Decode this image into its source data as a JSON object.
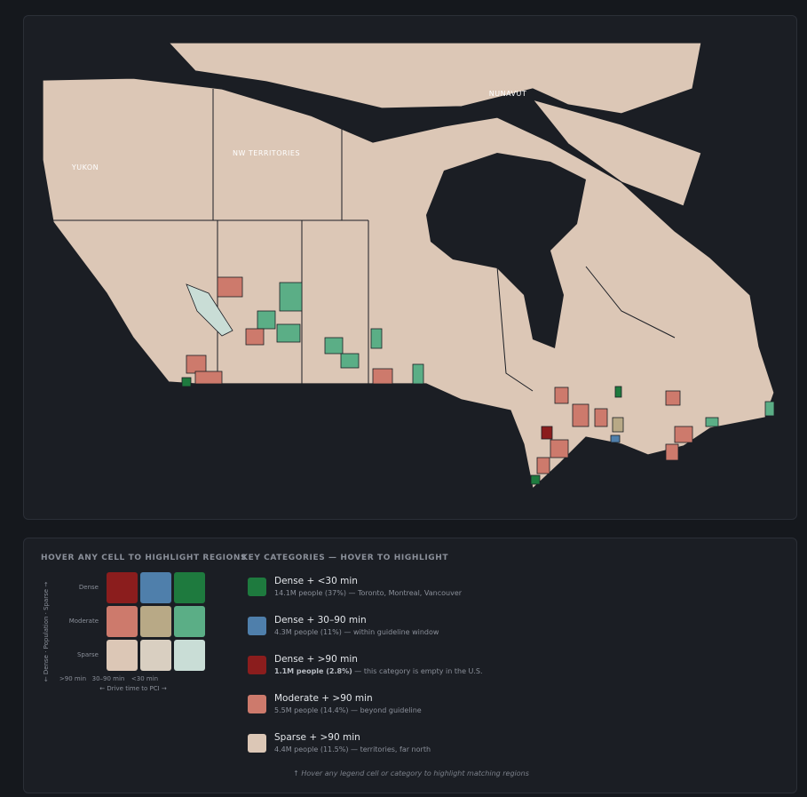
{
  "map": {
    "labels": [
      "YUKON",
      "NW TERRITORIES",
      "NUNAVUT"
    ]
  },
  "legend": {
    "title": "HOVER ANY CELL TO HIGHLIGHT REGIONS",
    "rows": [
      "Dense",
      "Moderate",
      "Sparse"
    ],
    "y_axis": "← Dense · Population · Sparse →",
    "columns": [
      ">90 min",
      "30–90 min",
      "<30 min"
    ],
    "x_axis": "← Drive time to PCI →",
    "colors": [
      [
        "#8b1d1d",
        "#4f7fab",
        "#1e7a3e"
      ],
      [
        "#cd7a6c",
        "#b8a986",
        "#5bae86"
      ],
      [
        "#dcc7b6",
        "#d9cfc1",
        "#c9ddd6"
      ]
    ]
  },
  "categories": {
    "title": "KEY CATEGORIES — HOVER TO HIGHLIGHT",
    "items": [
      {
        "name": "Dense + <30 min",
        "color": "#1e7a3e",
        "detail": "14.1M people (37%) — Toronto, Montreal, Vancouver"
      },
      {
        "name": "Dense + 30–90 min",
        "color": "#4f7fab",
        "detail": "4.3M people (11%) — within guideline window"
      },
      {
        "name": "Dense + >90 min",
        "color": "#8b1d1d",
        "detail_bold": "1.1M people (2.8%)",
        "detail": "— this category is empty in the U.S."
      },
      {
        "name": "Moderate + >90 min",
        "color": "#cd7a6c",
        "detail": "5.5M people (14.4%) — beyond guideline"
      },
      {
        "name": "Sparse + >90 min",
        "color": "#dcc7b6",
        "detail": "4.4M people (11.5%) — territories, far north"
      }
    ],
    "note": "↑ Hover any legend cell or category to highlight matching regions"
  }
}
